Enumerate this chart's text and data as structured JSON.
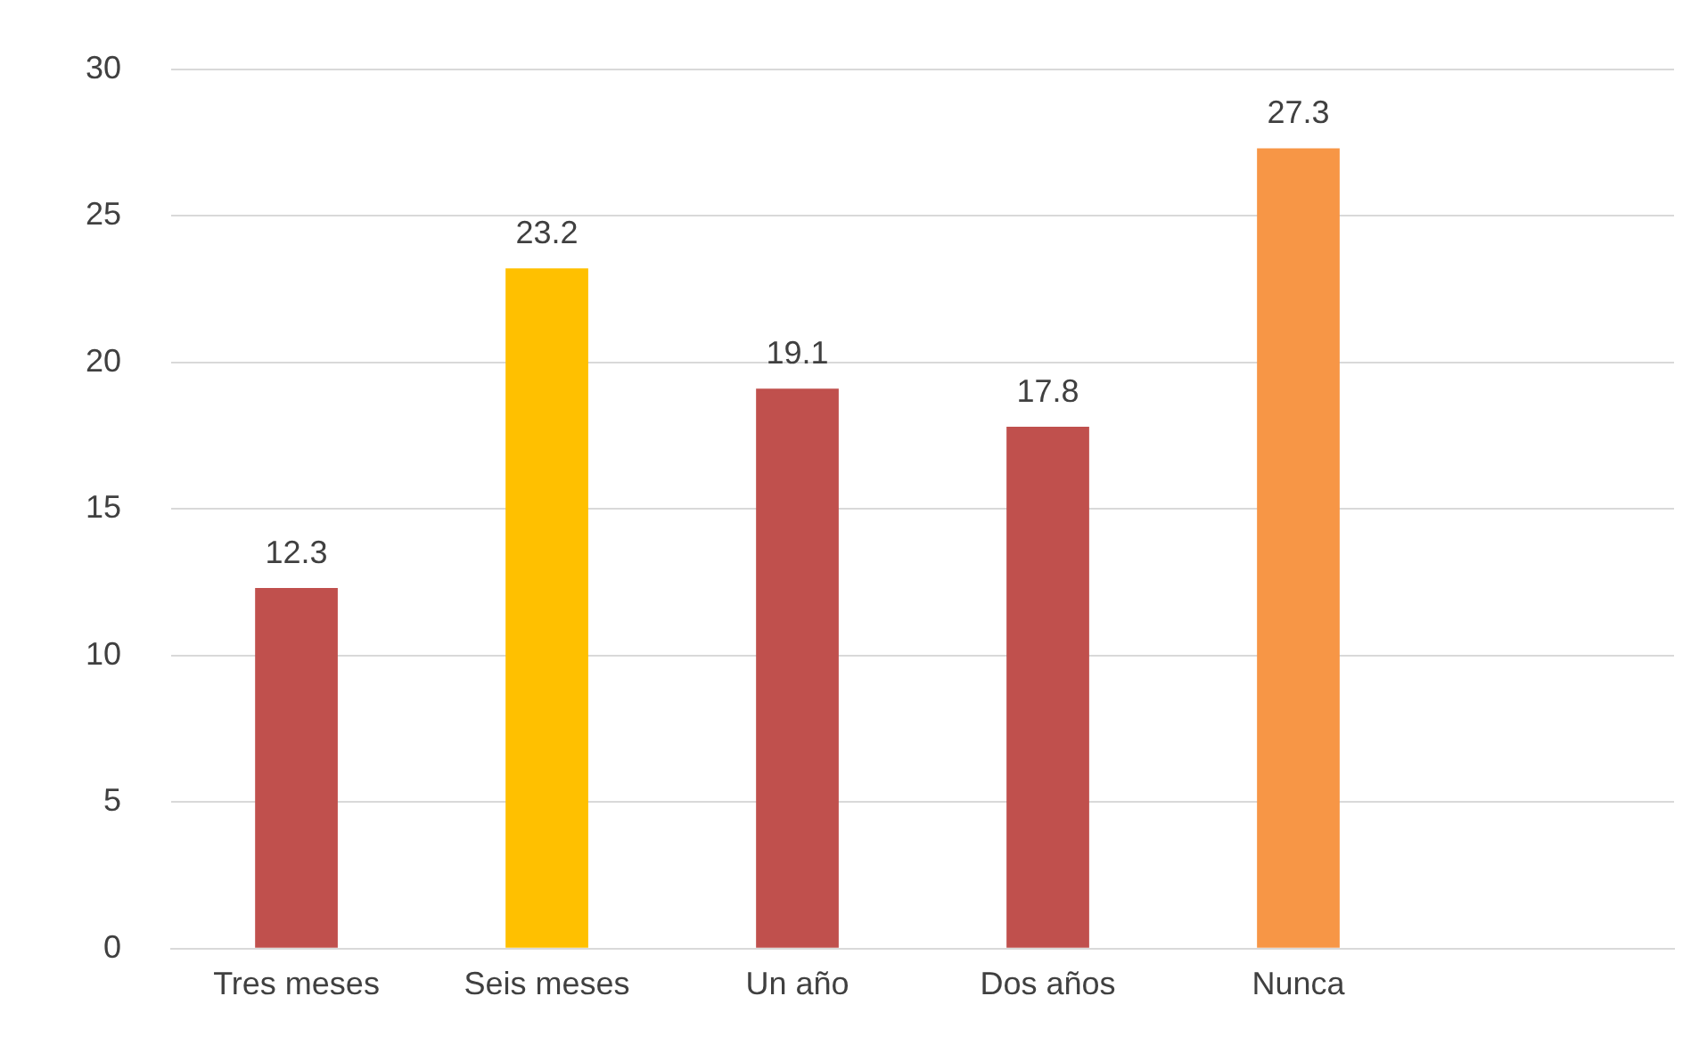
{
  "chart_data": {
    "type": "bar",
    "categories": [
      "Tres meses",
      "Seis meses",
      "Un año",
      "Dos años",
      "Nunca",
      null
    ],
    "values": [
      12.3,
      23.2,
      19.1,
      17.8,
      27.3,
      null
    ],
    "colors": [
      "#c0504d",
      "#ffc000",
      "#c0504d",
      "#c0504d",
      "#f79646",
      "#c0504d"
    ],
    "ylim": [
      0,
      30
    ],
    "yticks": [
      0,
      5,
      10,
      15,
      20,
      25,
      30
    ],
    "grid": "y",
    "data_labels": true,
    "legend": false
  }
}
